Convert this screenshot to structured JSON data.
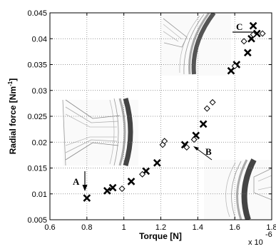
{
  "chart_data": {
    "type": "scatter",
    "xlabel": "Torque [N]",
    "ylabel": "Radial force [Nm",
    "ylabel_sup": "-1",
    "x_multiplier": "x 10",
    "x_multiplier_exp": "-6",
    "xlim": [
      0.6,
      1.8
    ],
    "ylim": [
      0.005,
      0.045
    ],
    "x_ticks": [
      "0.6",
      "0.8",
      "1",
      "1.2",
      "1.4",
      "1.6",
      "1.8"
    ],
    "y_ticks": [
      "0.005",
      "0.01",
      "0.015",
      "0.02",
      "0.025",
      "0.03",
      "0.035",
      "0.04",
      "0.045"
    ],
    "grid": true,
    "series": [
      {
        "marker": "x",
        "points": [
          [
            0.8,
            0.0092
          ],
          [
            0.91,
            0.0106
          ],
          [
            0.94,
            0.0112
          ],
          [
            1.04,
            0.0124
          ],
          [
            1.12,
            0.0144
          ],
          [
            1.18,
            0.016
          ],
          [
            1.33,
            0.0195
          ],
          [
            1.39,
            0.0213
          ],
          [
            1.43,
            0.0235
          ],
          [
            1.58,
            0.0338
          ],
          [
            1.61,
            0.035
          ],
          [
            1.67,
            0.0373
          ],
          [
            1.69,
            0.04
          ],
          [
            1.7,
            0.0425
          ],
          [
            1.72,
            0.041
          ]
        ]
      },
      {
        "marker": "diamond",
        "points": [
          [
            0.99,
            0.011
          ],
          [
            1.1,
            0.0138
          ],
          [
            1.21,
            0.0195
          ],
          [
            1.22,
            0.0202
          ],
          [
            1.34,
            0.019
          ],
          [
            1.38,
            0.0205
          ],
          [
            1.45,
            0.0265
          ],
          [
            1.48,
            0.0277
          ],
          [
            1.6,
            0.0347
          ],
          [
            1.65,
            0.0395
          ],
          [
            1.7,
            0.0408
          ],
          [
            1.75,
            0.041
          ]
        ]
      }
    ],
    "annotations": [
      {
        "label": "A",
        "x": 0.8,
        "y": 0.0092
      },
      {
        "label": "B",
        "x": 1.34,
        "y": 0.0192
      },
      {
        "label": "C",
        "x": 1.7,
        "y": 0.041
      }
    ]
  }
}
